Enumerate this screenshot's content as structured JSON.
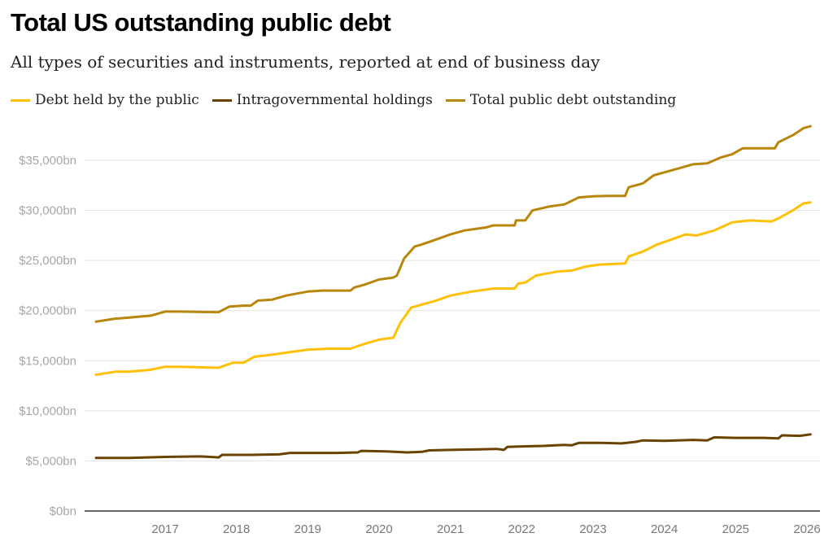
{
  "title": "Total US outstanding public debt",
  "subtitle": "All types of securities and instruments, reported at end of business day",
  "legend": [
    {
      "label": "Debt held by the public",
      "color": "#ffc107"
    },
    {
      "label": "Intragovernmental holdings",
      "color": "#6b4300"
    },
    {
      "label": "Total public debt outstanding",
      "color": "#b8860b"
    }
  ],
  "chart_data": {
    "type": "line",
    "title": "Total US outstanding public debt",
    "subtitle": "All types of securities and instruments, reported at end of business day",
    "xlabel": "",
    "ylabel": "",
    "xlim": [
      2016.0,
      2026.2
    ],
    "ylim": [
      0,
      38500
    ],
    "grid": true,
    "legend_position": "top-left",
    "y_ticks": [
      0,
      5000,
      10000,
      15000,
      20000,
      25000,
      30000,
      35000
    ],
    "y_tick_labels": [
      "$0bn",
      "$5,000bn",
      "$10,000bn",
      "$15,000bn",
      "$20,000bn",
      "$25,000bn",
      "$30,000bn",
      "$35,000bn"
    ],
    "x_ticks": [
      2017,
      2018,
      2019,
      2020,
      2021,
      2022,
      2023,
      2024,
      2025,
      2026
    ],
    "x_tick_labels": [
      "2017",
      "2018",
      "2019",
      "2020",
      "2021",
      "2022",
      "2023",
      "2024",
      "2025",
      "2026"
    ],
    "series": [
      {
        "name": "Total public debt outstanding",
        "color": "#b8860b",
        "x": [
          2016.03,
          2016.3,
          2016.5,
          2016.8,
          2017.0,
          2017.2,
          2017.7,
          2017.75,
          2017.9,
          2018.1,
          2018.2,
          2018.3,
          2018.5,
          2018.7,
          2019.0,
          2019.2,
          2019.6,
          2019.65,
          2019.8,
          2020.0,
          2020.2,
          2020.25,
          2020.35,
          2020.5,
          2020.6,
          2020.8,
          2021.0,
          2021.2,
          2021.5,
          2021.6,
          2021.9,
          2021.92,
          2022.05,
          2022.15,
          2022.4,
          2022.6,
          2022.8,
          2023.0,
          2023.2,
          2023.45,
          2023.5,
          2023.7,
          2023.85,
          2024.0,
          2024.2,
          2024.4,
          2024.6,
          2024.8,
          2024.95,
          2025.1,
          2025.3,
          2025.55,
          2025.6,
          2025.8,
          2025.95,
          2026.05
        ],
        "y": [
          18900,
          19200,
          19300,
          19500,
          19900,
          19900,
          19850,
          19850,
          20400,
          20500,
          20500,
          21000,
          21100,
          21500,
          21900,
          22000,
          22000,
          22300,
          22600,
          23100,
          23300,
          23500,
          25200,
          26400,
          26600,
          27100,
          27600,
          28000,
          28300,
          28500,
          28500,
          29000,
          29000,
          30000,
          30400,
          30600,
          31300,
          31400,
          31450,
          31450,
          32300,
          32700,
          33500,
          33800,
          34200,
          34600,
          34700,
          35300,
          35600,
          36200,
          36200,
          36200,
          36800,
          37500,
          38200,
          38400
        ]
      },
      {
        "name": "Debt held by the public",
        "color": "#ffc107",
        "x": [
          2016.03,
          2016.3,
          2016.5,
          2016.8,
          2017.0,
          2017.2,
          2017.7,
          2017.75,
          2017.95,
          2018.1,
          2018.25,
          2018.5,
          2018.7,
          2019.0,
          2019.3,
          2019.6,
          2019.8,
          2020.0,
          2020.2,
          2020.3,
          2020.45,
          2020.6,
          2020.8,
          2021.0,
          2021.3,
          2021.6,
          2021.9,
          2021.95,
          2022.05,
          2022.2,
          2022.5,
          2022.7,
          2022.9,
          2023.1,
          2023.45,
          2023.5,
          2023.7,
          2023.9,
          2024.1,
          2024.3,
          2024.45,
          2024.7,
          2024.95,
          2025.2,
          2025.5,
          2025.6,
          2025.8,
          2025.95,
          2026.05
        ],
        "y": [
          13600,
          13900,
          13900,
          14100,
          14400,
          14400,
          14300,
          14300,
          14800,
          14800,
          15400,
          15600,
          15800,
          16100,
          16200,
          16200,
          16700,
          17100,
          17300,
          18800,
          20300,
          20600,
          21000,
          21500,
          21900,
          22200,
          22200,
          22700,
          22800,
          23500,
          23900,
          24000,
          24400,
          24600,
          24700,
          25400,
          25900,
          26600,
          27100,
          27600,
          27500,
          28000,
          28800,
          29000,
          28900,
          29200,
          30000,
          30700,
          30800
        ]
      },
      {
        "name": "Intragovernmental holdings",
        "color": "#6b4300",
        "x": [
          2016.03,
          2016.5,
          2017.0,
          2017.5,
          2017.75,
          2017.8,
          2018.2,
          2018.6,
          2018.75,
          2019.0,
          2019.4,
          2019.7,
          2019.75,
          2020.1,
          2020.4,
          2020.6,
          2020.7,
          2021.0,
          2021.4,
          2021.65,
          2021.75,
          2021.8,
          2022.0,
          2022.3,
          2022.6,
          2022.7,
          2022.8,
          2023.1,
          2023.4,
          2023.6,
          2023.7,
          2024.0,
          2024.4,
          2024.6,
          2024.7,
          2025.0,
          2025.4,
          2025.6,
          2025.65,
          2025.9,
          2026.05
        ],
        "y": [
          5300,
          5300,
          5400,
          5450,
          5350,
          5600,
          5600,
          5650,
          5800,
          5800,
          5800,
          5850,
          6000,
          5950,
          5850,
          5900,
          6050,
          6100,
          6150,
          6200,
          6100,
          6400,
          6450,
          6500,
          6600,
          6550,
          6800,
          6800,
          6750,
          6900,
          7050,
          7000,
          7100,
          7050,
          7350,
          7300,
          7300,
          7250,
          7550,
          7500,
          7650
        ]
      }
    ]
  }
}
